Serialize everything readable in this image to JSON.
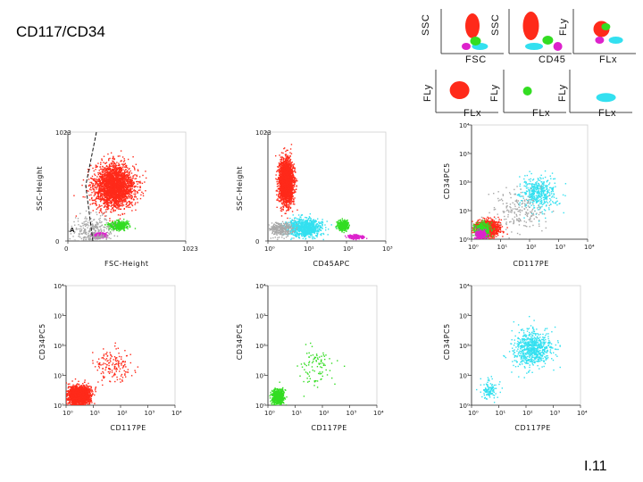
{
  "title": "CD117/CD34",
  "slide_number": "I.11",
  "colors": {
    "red": "#ff2a1a",
    "green": "#33dd22",
    "magenta": "#dd22cc",
    "cyan": "#33e0f0",
    "gray": "#a8a8a8"
  },
  "chart_data": [
    {
      "type": "scatter",
      "xlabel": "FSC",
      "ylabel": "SSC",
      "schematic": true,
      "populations": [
        {
          "color": "red",
          "x": 0.5,
          "y": 0.62
        },
        {
          "color": "green",
          "x": 0.55,
          "y": 0.28
        },
        {
          "color": "magenta",
          "x": 0.4,
          "y": 0.16
        },
        {
          "color": "cyan",
          "x": 0.62,
          "y": 0.16
        }
      ]
    },
    {
      "type": "scatter",
      "xlabel": "CD45",
      "ylabel": "SSC",
      "schematic": true,
      "populations": [
        {
          "color": "red",
          "x": 0.35,
          "y": 0.62
        },
        {
          "color": "green",
          "x": 0.62,
          "y": 0.3
        },
        {
          "color": "magenta",
          "x": 0.78,
          "y": 0.16
        },
        {
          "color": "cyan",
          "x": 0.4,
          "y": 0.16
        }
      ]
    },
    {
      "type": "scatter",
      "xlabel": "FLx",
      "ylabel": "FLy",
      "schematic": true,
      "populations": [
        {
          "color": "red",
          "x": 0.45,
          "y": 0.55
        },
        {
          "color": "green",
          "x": 0.52,
          "y": 0.6
        },
        {
          "color": "magenta",
          "x": 0.42,
          "y": 0.3
        },
        {
          "color": "cyan",
          "x": 0.68,
          "y": 0.3
        }
      ]
    },
    {
      "type": "scatter",
      "xlabel": "FLx",
      "ylabel": "FLy",
      "schematic": true,
      "populations": [
        {
          "color": "red",
          "x": 0.38,
          "y": 0.52
        }
      ]
    },
    {
      "type": "scatter",
      "xlabel": "FLx",
      "ylabel": "FLy",
      "schematic": true,
      "populations": [
        {
          "color": "green",
          "x": 0.38,
          "y": 0.5
        }
      ]
    },
    {
      "type": "scatter",
      "xlabel": "FLx",
      "ylabel": "FLy",
      "schematic": true,
      "populations": [
        {
          "color": "cyan",
          "x": 0.58,
          "y": 0.35
        }
      ]
    },
    {
      "type": "scatter",
      "xlabel": "FSC-Height",
      "ylabel": "SSC-Height",
      "xlim": [
        0,
        1023
      ],
      "ylim": [
        0,
        1023
      ],
      "xticks": [
        "0",
        "1023"
      ],
      "yticks": [
        "0",
        "1023"
      ],
      "gate_label": "A",
      "populations": [
        {
          "color": "red",
          "cx": 400,
          "cy": 520,
          "sx": 170,
          "sy": 200,
          "n": 2600
        },
        {
          "color": "green",
          "cx": 430,
          "cy": 150,
          "sx": 80,
          "sy": 40,
          "n": 420
        },
        {
          "color": "magenta",
          "cx": 270,
          "cy": 60,
          "sx": 60,
          "sy": 22,
          "n": 260
        },
        {
          "color": "gray",
          "cx": 220,
          "cy": 80,
          "sx": 180,
          "sy": 150,
          "n": 380
        }
      ]
    },
    {
      "type": "scatter",
      "xlabel": "CD45APC",
      "ylabel": "SSC-Height",
      "xscale": "log",
      "xlim": [
        1,
        1000
      ],
      "ylim": [
        0,
        1023
      ],
      "xticks": [
        "10⁰",
        "10¹",
        "10²",
        "10³"
      ],
      "yticks": [
        "0",
        "1023"
      ],
      "populations": [
        {
          "color": "red",
          "cx": 0.45,
          "cy": 560,
          "sx": 0.18,
          "sy": 200,
          "n": 2400
        },
        {
          "color": "cyan",
          "cx": 0.9,
          "cy": 130,
          "sx": 0.45,
          "sy": 80,
          "n": 900
        },
        {
          "color": "green",
          "cx": 1.9,
          "cy": 150,
          "sx": 0.14,
          "sy": 45,
          "n": 350
        },
        {
          "color": "magenta",
          "cx": 2.2,
          "cy": 45,
          "sx": 0.18,
          "sy": 18,
          "n": 200
        },
        {
          "color": "gray",
          "cx": 0.3,
          "cy": 110,
          "sx": 0.35,
          "sy": 70,
          "n": 300
        }
      ]
    },
    {
      "type": "scatter",
      "xlabel": "CD117PE",
      "ylabel": "CD34PC5",
      "xscale": "log",
      "yscale": "log",
      "xlim": [
        1,
        10000
      ],
      "ylim": [
        1,
        10000
      ],
      "xticks": [
        "10⁰",
        "10¹",
        "10²",
        "10³",
        "10⁴"
      ],
      "yticks": [
        "10⁰",
        "10¹",
        "10²",
        "10³",
        "10⁴"
      ],
      "populations": [
        {
          "color": "red",
          "cx": 0.5,
          "cy": 0.4,
          "sx": 0.38,
          "sy": 0.26,
          "n": 1600
        },
        {
          "color": "green",
          "cx": 0.35,
          "cy": 0.32,
          "sx": 0.25,
          "sy": 0.26,
          "n": 500
        },
        {
          "color": "magenta",
          "cx": 0.3,
          "cy": 0.18,
          "sx": 0.18,
          "sy": 0.15,
          "n": 260
        },
        {
          "color": "cyan",
          "cx": 2.3,
          "cy": 1.6,
          "sx": 0.65,
          "sy": 0.6,
          "n": 420
        },
        {
          "color": "gray",
          "cx": 1.6,
          "cy": 1.0,
          "sx": 0.9,
          "sy": 0.7,
          "n": 200
        }
      ]
    },
    {
      "type": "scatter",
      "xlabel": "CD117PE",
      "ylabel": "CD34PC5",
      "xscale": "log",
      "yscale": "log",
      "xlim": [
        1,
        10000
      ],
      "ylim": [
        1,
        10000
      ],
      "xticks": [
        "10⁰",
        "10¹",
        "10²",
        "10³",
        "10⁴"
      ],
      "yticks": [
        "10⁰",
        "10¹",
        "10²",
        "10³",
        "10⁴"
      ],
      "populations": [
        {
          "color": "red",
          "cx": 0.45,
          "cy": 0.35,
          "sx": 0.38,
          "sy": 0.28,
          "n": 2200
        },
        {
          "color": "red",
          "cx": 1.7,
          "cy": 1.3,
          "sx": 0.7,
          "sy": 0.6,
          "n": 160
        }
      ]
    },
    {
      "type": "scatter",
      "xlabel": "CD117PE",
      "ylabel": "CD34PC5",
      "xscale": "log",
      "yscale": "log",
      "xlim": [
        1,
        10000
      ],
      "ylim": [
        1,
        10000
      ],
      "xticks": [
        "10⁰",
        "10¹",
        "10²",
        "10³",
        "10⁴"
      ],
      "yticks": [
        "10⁰",
        "10¹",
        "10²",
        "10³",
        "10⁴"
      ],
      "populations": [
        {
          "color": "green",
          "cx": 0.35,
          "cy": 0.3,
          "sx": 0.22,
          "sy": 0.26,
          "n": 600
        },
        {
          "color": "green",
          "cx": 1.7,
          "cy": 1.3,
          "sx": 0.7,
          "sy": 0.7,
          "n": 90
        }
      ]
    },
    {
      "type": "scatter",
      "xlabel": "CD117PE",
      "ylabel": "CD34PC5",
      "xscale": "log",
      "yscale": "log",
      "xlim": [
        1,
        10000
      ],
      "ylim": [
        1,
        10000
      ],
      "xticks": [
        "10⁰",
        "10¹",
        "10²",
        "10³",
        "10⁴"
      ],
      "yticks": [
        "10⁰",
        "10¹",
        "10²",
        "10³",
        "10⁴"
      ],
      "populations": [
        {
          "color": "cyan",
          "cx": 2.2,
          "cy": 1.9,
          "sx": 0.7,
          "sy": 0.6,
          "n": 700
        },
        {
          "color": "cyan",
          "cx": 0.6,
          "cy": 0.55,
          "sx": 0.3,
          "sy": 0.3,
          "n": 120
        }
      ]
    }
  ]
}
